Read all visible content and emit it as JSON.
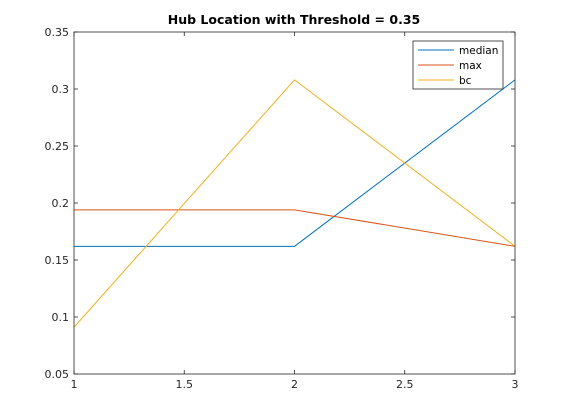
{
  "chart_data": {
    "type": "line",
    "title": "Hub Location with Threshold = 0.35",
    "xlabel": "",
    "ylabel": "",
    "xlim": [
      1,
      3
    ],
    "ylim": [
      0.05,
      0.35
    ],
    "x": [
      1,
      2,
      3
    ],
    "xticks": [
      "1",
      "1.5",
      "2",
      "2.5",
      "3"
    ],
    "yticks": [
      "0.05",
      "0.1",
      "0.15",
      "0.2",
      "0.25",
      "0.3",
      "0.35"
    ],
    "grid": false,
    "legend_position": "top-right",
    "series": [
      {
        "name": "median",
        "color": "#0072BD",
        "values": [
          0.162,
          0.162,
          0.308
        ]
      },
      {
        "name": "max",
        "color": "#D95319",
        "values": [
          0.194,
          0.194,
          0.162
        ]
      },
      {
        "name": "bc",
        "color": "#EDB120",
        "values": [
          0.091,
          0.308,
          0.162
        ]
      }
    ]
  }
}
